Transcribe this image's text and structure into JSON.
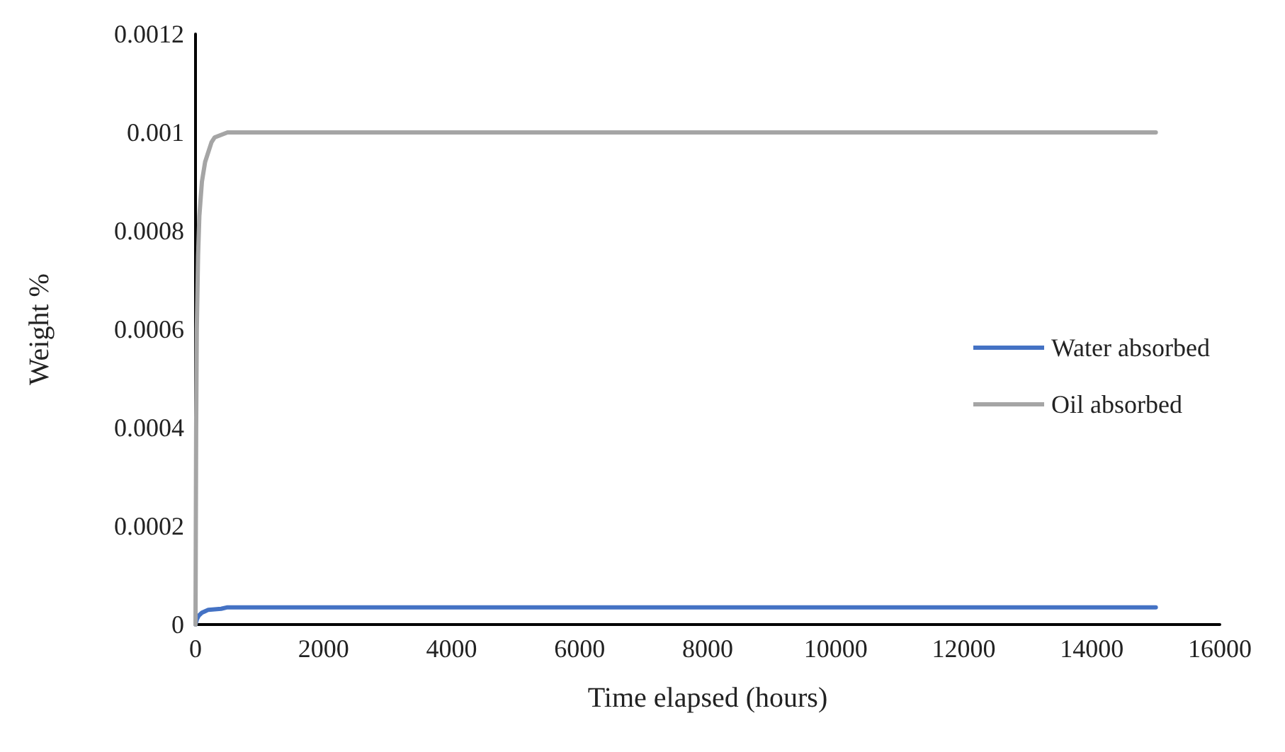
{
  "chart_data": {
    "type": "line",
    "xlabel": "Time elapsed (hours)",
    "ylabel": "Weight %",
    "series": [
      {
        "name": "Water absorbed",
        "color": "#4472c4",
        "x": [
          0,
          20,
          50,
          100,
          150,
          200,
          300,
          400,
          500,
          1000,
          5000,
          10000,
          15000
        ],
        "values": [
          0,
          1e-05,
          1.8e-05,
          2.4e-05,
          2.7e-05,
          3e-05,
          3.1e-05,
          3.2e-05,
          3.5e-05,
          3.5e-05,
          3.5e-05,
          3.5e-05,
          3.5e-05
        ]
      },
      {
        "name": "Oil absorbed",
        "color": "#a5a5a5",
        "x": [
          0,
          10,
          20,
          40,
          60,
          100,
          150,
          200,
          250,
          300,
          400,
          500,
          1000,
          5000,
          10000,
          15000
        ],
        "values": [
          0,
          0.0004,
          0.0006,
          0.00075,
          0.00083,
          0.0009,
          0.00094,
          0.00096,
          0.00098,
          0.00099,
          0.000995,
          0.001,
          0.001,
          0.001,
          0.001,
          0.001
        ]
      }
    ],
    "xlim": [
      0,
      16000
    ],
    "xticks": [
      0,
      2000,
      4000,
      6000,
      8000,
      10000,
      12000,
      14000,
      16000
    ],
    "ylim": [
      0,
      0.0012
    ],
    "yticks": [
      0,
      0.0002,
      0.0004,
      0.0006,
      0.0008,
      0.001,
      0.0012
    ],
    "grid": false,
    "legend": "right",
    "marker": "none",
    "line_style": "solid"
  }
}
